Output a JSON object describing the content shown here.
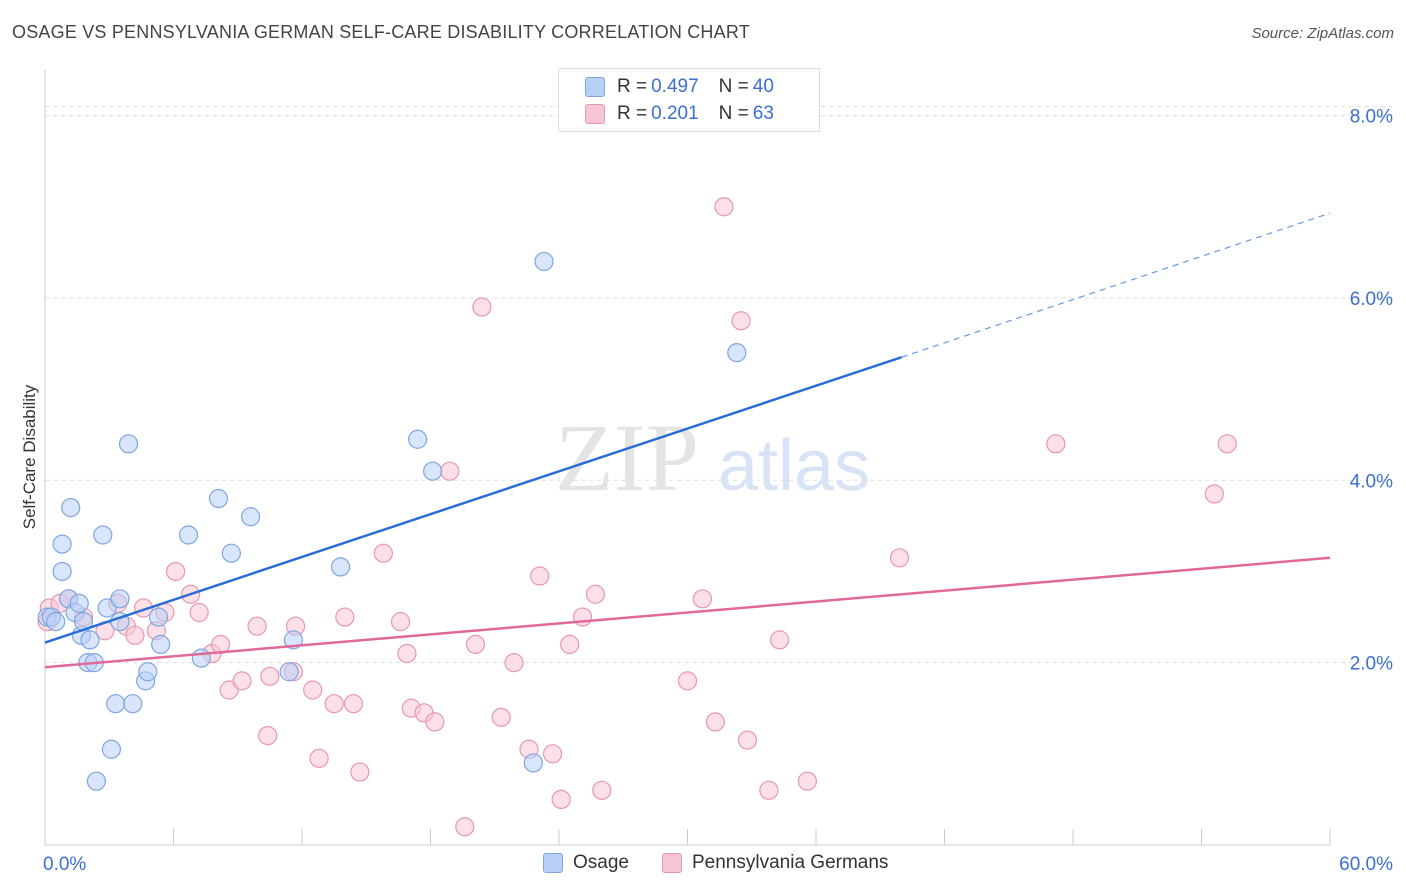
{
  "title": "OSAGE VS PENNSYLVANIA GERMAN SELF-CARE DISABILITY CORRELATION CHART",
  "source": "Source: ZipAtlas.com",
  "watermark": {
    "zip": "ZIP",
    "atlas": "atlas"
  },
  "legend": {
    "osage": {
      "r_label": "R = ",
      "r": "0.497",
      "n_label": "N = ",
      "n": "40"
    },
    "penn": {
      "r_label": "R = ",
      "r": "0.201",
      "n_label": "N = ",
      "n": "63"
    }
  },
  "colors": {
    "osage_fill": "#b8d0f5",
    "osage_stroke": "#7fa6e0",
    "osage_line": "#2b6fd4",
    "penn_fill": "#f7c6d4",
    "penn_stroke": "#e897b0",
    "penn_line": "#e0699a",
    "tick_label": "#3b6fd1"
  },
  "chart_data": {
    "type": "scatter",
    "ylabel": "Self-Care Disability",
    "xlim": [
      0,
      60
    ],
    "ylim": [
      0,
      8.5
    ],
    "x_tick_labels": [
      "0.0%",
      "60.0%"
    ],
    "y_ticks": [
      2,
      4,
      6,
      8
    ],
    "y_tick_labels": [
      "2.0%",
      "4.0%",
      "6.0%",
      "8.0%"
    ],
    "grid": true,
    "series": [
      {
        "name": "Osage",
        "points": [
          [
            0.1,
            2.5
          ],
          [
            0.3,
            2.5
          ],
          [
            0.5,
            2.45
          ],
          [
            0.8,
            3.3
          ],
          [
            0.8,
            3.0
          ],
          [
            1.1,
            2.7
          ],
          [
            1.2,
            3.7
          ],
          [
            1.4,
            2.55
          ],
          [
            1.6,
            2.65
          ],
          [
            1.7,
            2.3
          ],
          [
            1.8,
            2.45
          ],
          [
            2.0,
            2.0
          ],
          [
            2.1,
            2.25
          ],
          [
            2.3,
            2.0
          ],
          [
            2.4,
            0.7
          ],
          [
            2.7,
            3.4
          ],
          [
            2.9,
            2.6
          ],
          [
            3.1,
            1.05
          ],
          [
            3.3,
            1.55
          ],
          [
            3.5,
            2.45
          ],
          [
            3.5,
            2.7
          ],
          [
            3.9,
            4.4
          ],
          [
            4.1,
            1.55
          ],
          [
            4.7,
            1.8
          ],
          [
            4.8,
            1.9
          ],
          [
            5.3,
            2.5
          ],
          [
            5.4,
            2.2
          ],
          [
            6.7,
            3.4
          ],
          [
            7.3,
            2.05
          ],
          [
            8.1,
            3.8
          ],
          [
            8.7,
            3.2
          ],
          [
            9.6,
            3.6
          ],
          [
            11.4,
            1.9
          ],
          [
            11.6,
            2.25
          ],
          [
            13.8,
            3.05
          ],
          [
            17.4,
            4.45
          ],
          [
            18.1,
            4.1
          ],
          [
            22.8,
            0.9
          ],
          [
            23.3,
            6.4
          ],
          [
            32.3,
            5.4
          ]
        ],
        "trend": {
          "x": [
            0,
            40
          ],
          "y": [
            2.22,
            5.35
          ]
        },
        "trend_dashed": {
          "x": [
            40,
            60
          ],
          "y": [
            5.35,
            6.93
          ]
        }
      },
      {
        "name": "Pennsylvania Germans",
        "points": [
          [
            0.1,
            2.45
          ],
          [
            0.2,
            2.6
          ],
          [
            0.7,
            2.65
          ],
          [
            1.1,
            2.7
          ],
          [
            1.8,
            2.5
          ],
          [
            2.8,
            2.35
          ],
          [
            3.4,
            2.65
          ],
          [
            3.8,
            2.4
          ],
          [
            4.2,
            2.3
          ],
          [
            4.6,
            2.6
          ],
          [
            5.2,
            2.35
          ],
          [
            5.6,
            2.55
          ],
          [
            6.1,
            3.0
          ],
          [
            6.8,
            2.75
          ],
          [
            7.2,
            2.55
          ],
          [
            7.8,
            2.1
          ],
          [
            8.2,
            2.2
          ],
          [
            8.6,
            1.7
          ],
          [
            9.2,
            1.8
          ],
          [
            9.9,
            2.4
          ],
          [
            10.4,
            1.2
          ],
          [
            10.5,
            1.85
          ],
          [
            11.6,
            1.9
          ],
          [
            11.7,
            2.4
          ],
          [
            12.5,
            1.7
          ],
          [
            12.8,
            0.95
          ],
          [
            13.5,
            1.55
          ],
          [
            14.0,
            2.5
          ],
          [
            14.4,
            1.55
          ],
          [
            14.7,
            0.8
          ],
          [
            15.8,
            3.2
          ],
          [
            16.6,
            2.45
          ],
          [
            16.9,
            2.1
          ],
          [
            17.1,
            1.5
          ],
          [
            17.7,
            1.45
          ],
          [
            18.2,
            1.35
          ],
          [
            18.9,
            4.1
          ],
          [
            19.6,
            0.2
          ],
          [
            20.1,
            2.2
          ],
          [
            20.4,
            5.9
          ],
          [
            21.3,
            1.4
          ],
          [
            21.9,
            2.0
          ],
          [
            22.6,
            1.05
          ],
          [
            23.1,
            2.95
          ],
          [
            23.7,
            1.0
          ],
          [
            24.1,
            0.5
          ],
          [
            24.5,
            2.2
          ],
          [
            25.1,
            2.5
          ],
          [
            25.7,
            2.75
          ],
          [
            26.0,
            0.6
          ],
          [
            30.0,
            1.8
          ],
          [
            30.7,
            2.7
          ],
          [
            31.3,
            1.35
          ],
          [
            31.7,
            7.0
          ],
          [
            32.5,
            5.75
          ],
          [
            32.8,
            1.15
          ],
          [
            33.8,
            0.6
          ],
          [
            34.3,
            2.25
          ],
          [
            35.6,
            0.7
          ],
          [
            39.9,
            3.15
          ],
          [
            47.2,
            4.4
          ],
          [
            54.6,
            3.85
          ],
          [
            55.2,
            4.4
          ]
        ],
        "trend": {
          "x": [
            0,
            60
          ],
          "y": [
            1.95,
            3.15
          ]
        }
      }
    ]
  }
}
